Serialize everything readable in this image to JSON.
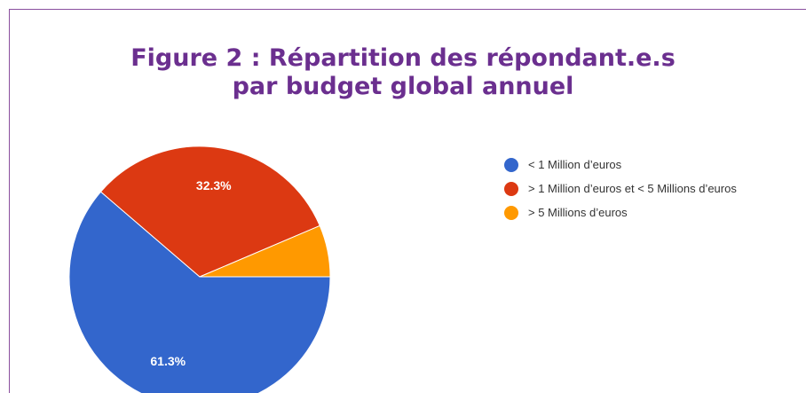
{
  "chart_data": {
    "type": "pie",
    "title": [
      "Figure 2 : Répartition des répondant.e.s",
      "par budget global annuel"
    ],
    "categories": [
      "< 1 Million d’euros",
      "> 1 Million d’euros et < 5 Millions d’euros",
      "> 5 Millions d’euros"
    ],
    "values": [
      61.3,
      32.3,
      6.4
    ],
    "value_labels": [
      "61.3%",
      "32.3%",
      null
    ],
    "colors": [
      "#3366cc",
      "#dc3912",
      "#ff9900"
    ],
    "legend": "right"
  }
}
